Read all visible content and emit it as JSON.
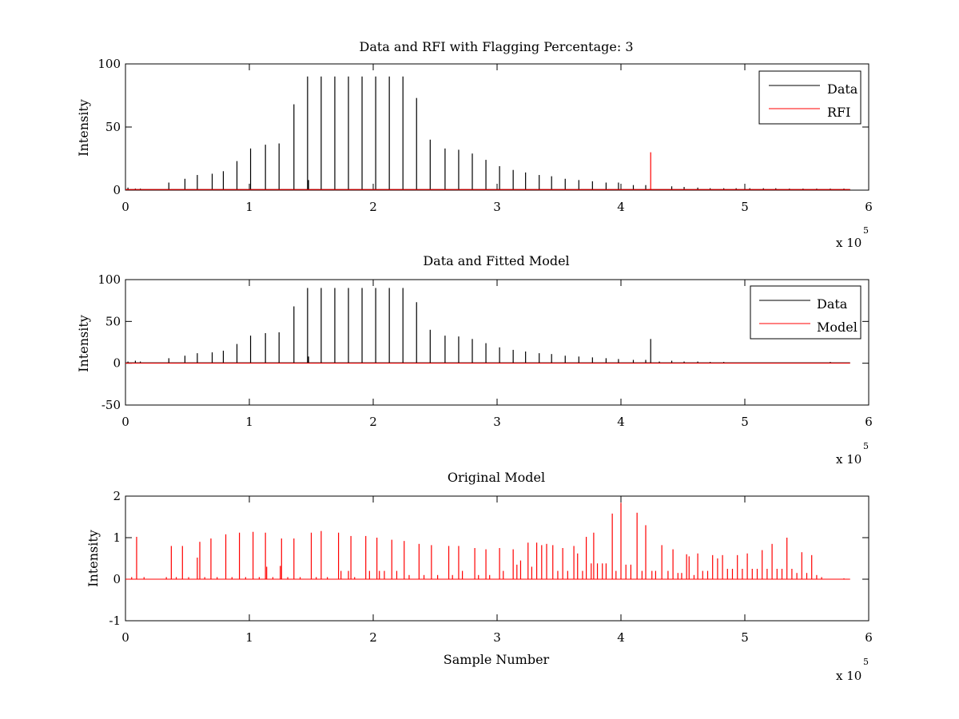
{
  "figure": {
    "background": "#ffffff",
    "colors": {
      "data": "#000000",
      "model": "#ff0000",
      "rfi": "#ff0000"
    }
  },
  "chart_data": [
    {
      "type": "line",
      "title": "Data and RFI with Flagging Percentage: 3",
      "xlabel": "",
      "ylabel": "Intensity",
      "xlim": [
        0,
        600000
      ],
      "ylim": [
        0,
        100
      ],
      "xticks": [
        0,
        1,
        2,
        3,
        4,
        5,
        6
      ],
      "yticks": [
        0,
        50,
        100
      ],
      "x_multiplier": "x 10",
      "x_exponent": "5",
      "legend": {
        "position": "top-right",
        "entries": [
          "Data",
          "RFI"
        ]
      },
      "series": [
        {
          "name": "Data",
          "color": "#000000",
          "baseline": 0.5,
          "spikes": [
            [
              2000,
              2
            ],
            [
              8000,
              1.2
            ],
            [
              12000,
              1.2
            ],
            [
              35000,
              6
            ],
            [
              48000,
              9
            ],
            [
              58000,
              12
            ],
            [
              70000,
              13
            ],
            [
              79000,
              15
            ],
            [
              90000,
              23
            ],
            [
              101000,
              33
            ],
            [
              113000,
              36
            ],
            [
              124000,
              37
            ],
            [
              136000,
              68
            ],
            [
              147000,
              90
            ],
            [
              147800,
              8
            ],
            [
              158000,
              90
            ],
            [
              169000,
              90
            ],
            [
              180000,
              90
            ],
            [
              191000,
              90
            ],
            [
              202000,
              90
            ],
            [
              213000,
              90
            ],
            [
              224000,
              90
            ],
            [
              235000,
              73
            ],
            [
              246000,
              40
            ],
            [
              258000,
              33
            ],
            [
              269000,
              32
            ],
            [
              280000,
              29
            ],
            [
              291000,
              24
            ],
            [
              302000,
              19
            ],
            [
              313000,
              16
            ],
            [
              323000,
              14
            ],
            [
              334000,
              12
            ],
            [
              344000,
              11
            ],
            [
              355000,
              9
            ],
            [
              366000,
              8
            ],
            [
              377000,
              7
            ],
            [
              388000,
              6
            ],
            [
              398000,
              6
            ],
            [
              410000,
              4
            ],
            [
              420000,
              4
            ],
            [
              441000,
              3
            ],
            [
              451000,
              2.5
            ],
            [
              462000,
              2
            ],
            [
              472000,
              1.5
            ],
            [
              483000,
              1.5
            ],
            [
              493000,
              1.5
            ],
            [
              504000,
              1.5
            ],
            [
              515000,
              1.5
            ],
            [
              525000,
              1.5
            ],
            [
              536000,
              1.2
            ],
            [
              547000,
              1.2
            ],
            [
              558000,
              1.2
            ],
            [
              569000,
              1.2
            ],
            [
              580000,
              1.2
            ]
          ]
        },
        {
          "name": "RFI",
          "color": "#ff0000",
          "baseline": 0.5,
          "spikes": [
            [
              424000,
              30
            ]
          ]
        }
      ]
    },
    {
      "type": "line",
      "title": "Data and Fitted Model",
      "xlabel": "",
      "ylabel": "Intensity",
      "xlim": [
        0,
        600000
      ],
      "ylim": [
        -50,
        100
      ],
      "xticks": [
        0,
        1,
        2,
        3,
        4,
        5,
        6
      ],
      "yticks": [
        -50,
        0,
        50,
        100
      ],
      "x_multiplier": "x 10",
      "x_exponent": "5",
      "legend": {
        "position": "top-right",
        "entries": [
          "Data",
          "Model"
        ]
      },
      "series": [
        {
          "name": "Data",
          "color": "#000000",
          "baseline": 0.5,
          "spikes": [
            [
              2000,
              2
            ],
            [
              8000,
              3
            ],
            [
              12000,
              2
            ],
            [
              35000,
              6
            ],
            [
              48000,
              9
            ],
            [
              58000,
              12
            ],
            [
              70000,
              13
            ],
            [
              79000,
              15
            ],
            [
              90000,
              23
            ],
            [
              101000,
              33
            ],
            [
              113000,
              36
            ],
            [
              124000,
              37
            ],
            [
              136000,
              68
            ],
            [
              147000,
              90
            ],
            [
              147800,
              8
            ],
            [
              158000,
              90
            ],
            [
              169000,
              90
            ],
            [
              180000,
              90
            ],
            [
              191000,
              90
            ],
            [
              202000,
              90
            ],
            [
              213000,
              90
            ],
            [
              224000,
              90
            ],
            [
              235000,
              73
            ],
            [
              246000,
              40
            ],
            [
              258000,
              33
            ],
            [
              269000,
              32
            ],
            [
              280000,
              29
            ],
            [
              291000,
              24
            ],
            [
              302000,
              19
            ],
            [
              313000,
              16
            ],
            [
              323000,
              14
            ],
            [
              334000,
              12
            ],
            [
              344000,
              11
            ],
            [
              355000,
              9
            ],
            [
              366000,
              8
            ],
            [
              377000,
              7
            ],
            [
              388000,
              6
            ],
            [
              398000,
              5
            ],
            [
              410000,
              4
            ],
            [
              420000,
              4
            ],
            [
              424000,
              29
            ],
            [
              431000,
              2
            ],
            [
              441000,
              3
            ],
            [
              451000,
              2
            ],
            [
              462000,
              2
            ],
            [
              472000,
              1.5
            ],
            [
              483000,
              1.5
            ],
            [
              569000,
              1.5
            ]
          ]
        },
        {
          "name": "Model",
          "color": "#ff0000",
          "baseline": 0,
          "spikes": []
        }
      ]
    },
    {
      "type": "line",
      "title": "Original Model",
      "xlabel": "Sample Number",
      "ylabel": "Intensity",
      "xlim": [
        0,
        600000
      ],
      "ylim": [
        -1,
        2
      ],
      "xticks": [
        0,
        1,
        2,
        3,
        4,
        5,
        6
      ],
      "yticks": [
        -1,
        0,
        1,
        2
      ],
      "x_multiplier": "x 10",
      "x_exponent": "5",
      "legend": null,
      "series": [
        {
          "name": "",
          "color": "#ff0000",
          "baseline": 0,
          "spikes": [
            [
              5000,
              0.05
            ],
            [
              9000,
              1.02
            ],
            [
              15000,
              0.05
            ],
            [
              33000,
              0.05
            ],
            [
              37000,
              0.8
            ],
            [
              41000,
              0.05
            ],
            [
              46000,
              0.8
            ],
            [
              51000,
              0.05
            ],
            [
              58000,
              0.52
            ],
            [
              60000,
              0.9
            ],
            [
              64000,
              0.05
            ],
            [
              69000,
              0.98
            ],
            [
              74000,
              0.05
            ],
            [
              81000,
              1.08
            ],
            [
              86000,
              0.05
            ],
            [
              92000,
              1.12
            ],
            [
              97000,
              0.05
            ],
            [
              103000,
              1.14
            ],
            [
              108000,
              0.05
            ],
            [
              113000,
              1.12
            ],
            [
              114000,
              0.3
            ],
            [
              119000,
              0.05
            ],
            [
              125000,
              0.32
            ],
            [
              126000,
              0.98
            ],
            [
              131000,
              0.05
            ],
            [
              136000,
              0.98
            ],
            [
              141000,
              0.05
            ],
            [
              150000,
              1.12
            ],
            [
              154000,
              0.05
            ],
            [
              158000,
              1.16
            ],
            [
              163000,
              0.05
            ],
            [
              172000,
              1.12
            ],
            [
              174000,
              0.2
            ],
            [
              180000,
              0.2
            ],
            [
              182000,
              1.04
            ],
            [
              185000,
              0.05
            ],
            [
              194000,
              1.04
            ],
            [
              197000,
              0.2
            ],
            [
              203000,
              1.0
            ],
            [
              205000,
              0.2
            ],
            [
              209000,
              0.2
            ],
            [
              215000,
              0.95
            ],
            [
              219000,
              0.2
            ],
            [
              225000,
              0.92
            ],
            [
              229000,
              0.1
            ],
            [
              237000,
              0.85
            ],
            [
              241000,
              0.1
            ],
            [
              247000,
              0.82
            ],
            [
              252000,
              0.1
            ],
            [
              261000,
              0.8
            ],
            [
              264000,
              0.1
            ],
            [
              269000,
              0.8
            ],
            [
              272000,
              0.2
            ],
            [
              282000,
              0.75
            ],
            [
              285000,
              0.1
            ],
            [
              291000,
              0.72
            ],
            [
              294000,
              0.1
            ],
            [
              302000,
              0.75
            ],
            [
              305000,
              0.2
            ],
            [
              313000,
              0.72
            ],
            [
              316000,
              0.35
            ],
            [
              319000,
              0.45
            ],
            [
              325000,
              0.88
            ],
            [
              328000,
              0.3
            ],
            [
              332000,
              0.88
            ],
            [
              336000,
              0.82
            ],
            [
              340000,
              0.85
            ],
            [
              345000,
              0.82
            ],
            [
              349000,
              0.2
            ],
            [
              353000,
              0.75
            ],
            [
              357000,
              0.2
            ],
            [
              362000,
              0.8
            ],
            [
              365000,
              0.62
            ],
            [
              369000,
              0.2
            ],
            [
              372000,
              1.02
            ],
            [
              376000,
              0.38
            ],
            [
              378000,
              1.12
            ],
            [
              381000,
              0.38
            ],
            [
              385000,
              0.38
            ],
            [
              388000,
              0.38
            ],
            [
              393000,
              1.58
            ],
            [
              396000,
              0.2
            ],
            [
              400000,
              1.84
            ],
            [
              404000,
              0.35
            ],
            [
              408000,
              0.35
            ],
            [
              413000,
              1.6
            ],
            [
              417000,
              0.2
            ],
            [
              420000,
              1.3
            ],
            [
              425000,
              0.2
            ],
            [
              428000,
              0.2
            ],
            [
              433000,
              0.82
            ],
            [
              438000,
              0.2
            ],
            [
              442000,
              0.72
            ],
            [
              446000,
              0.15
            ],
            [
              449000,
              0.15
            ],
            [
              453000,
              0.6
            ],
            [
              455000,
              0.55
            ],
            [
              459000,
              0.1
            ],
            [
              462000,
              0.62
            ],
            [
              466000,
              0.2
            ],
            [
              470000,
              0.2
            ],
            [
              474000,
              0.58
            ],
            [
              478000,
              0.5
            ],
            [
              482000,
              0.58
            ],
            [
              486000,
              0.25
            ],
            [
              490000,
              0.25
            ],
            [
              494000,
              0.58
            ],
            [
              498000,
              0.25
            ],
            [
              502000,
              0.62
            ],
            [
              506000,
              0.25
            ],
            [
              510000,
              0.25
            ],
            [
              514000,
              0.7
            ],
            [
              518000,
              0.25
            ],
            [
              522000,
              0.85
            ],
            [
              526000,
              0.25
            ],
            [
              530000,
              0.25
            ],
            [
              534000,
              1.0
            ],
            [
              538000,
              0.25
            ],
            [
              542000,
              0.15
            ],
            [
              546000,
              0.65
            ],
            [
              550000,
              0.15
            ],
            [
              554000,
              0.58
            ],
            [
              558000,
              0.1
            ],
            [
              562000,
              0.05
            ],
            [
              580000,
              0.02
            ]
          ]
        }
      ]
    }
  ]
}
